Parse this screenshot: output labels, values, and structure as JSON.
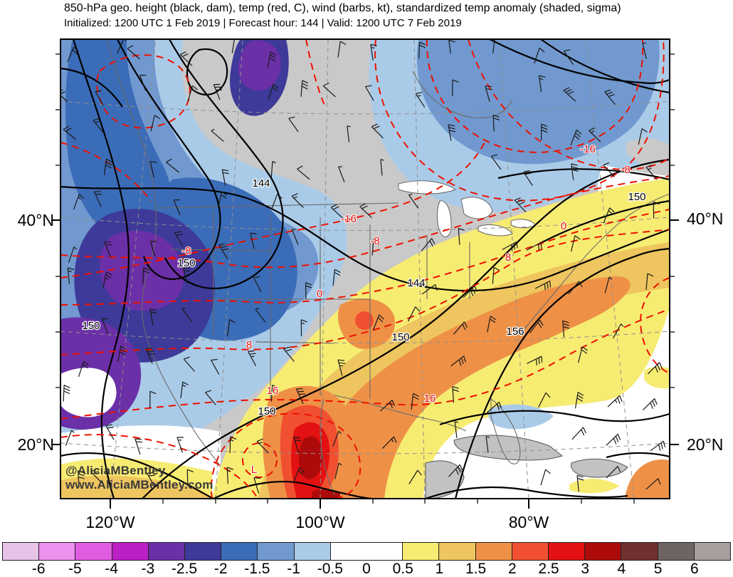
{
  "header": {
    "title": "850-hPa geo. height (black, dam), temp (red, C), wind (barbs, kt), standardized temp anomaly (shaded, sigma)",
    "subtitle": "Initialized: 1200 UTC 1 Feb 2019 | Forecast hour: 144 | Valid: 1200 UTC 7 Feb 2019"
  },
  "watermark": {
    "line1": "@AliciaMBentley",
    "line2": "www.AliciaMBentley.com"
  },
  "axes": {
    "lat_left": [
      "40°N",
      "20°N"
    ],
    "lat_right": [
      "40°N",
      "20°N"
    ],
    "lon": [
      "120°W",
      "100°W",
      "80°W"
    ]
  },
  "labels": {
    "height": [
      "144",
      "150",
      "150",
      "144",
      "150",
      "150",
      "156",
      "150"
    ],
    "temp": [
      "-16",
      "-8",
      "-16",
      "-8",
      "-8",
      "0",
      "0",
      "8",
      "8",
      "16",
      "16",
      "L"
    ]
  },
  "colorbar": {
    "ticks": [
      "-6",
      "-5",
      "-4",
      "-3",
      "-2.5",
      "-2",
      "-1.5",
      "-1",
      "-0.5",
      "0",
      "0.5",
      "1",
      "1.5",
      "2",
      "2.5",
      "3",
      "4",
      "5",
      "6"
    ],
    "colors": [
      "#e7c4e7",
      "#ee90ee",
      "#e25ce2",
      "#bb1fc6",
      "#6b2fa8",
      "#3d3a99",
      "#3b6cb8",
      "#7199cf",
      "#aacbe8",
      "#ffffff",
      "#f7ec72",
      "#eec55e",
      "#ee9147",
      "#f05030",
      "#e31111",
      "#ad0b0b",
      "#703030",
      "#6f6464",
      "#a89e9e"
    ]
  },
  "map_data": {
    "fields": [
      {
        "name": "geopotential height",
        "style": "black contours",
        "units": "dam",
        "contour_values": [
          144,
          150,
          156
        ]
      },
      {
        "name": "temperature",
        "style": "red dashed contours",
        "units": "C",
        "contour_values": [
          -16,
          -8,
          0,
          8,
          16
        ]
      },
      {
        "name": "wind",
        "style": "barbs",
        "units": "kt"
      },
      {
        "name": "standardized temperature anomaly",
        "style": "shaded",
        "units": "sigma"
      }
    ],
    "low_marker": "L"
  }
}
